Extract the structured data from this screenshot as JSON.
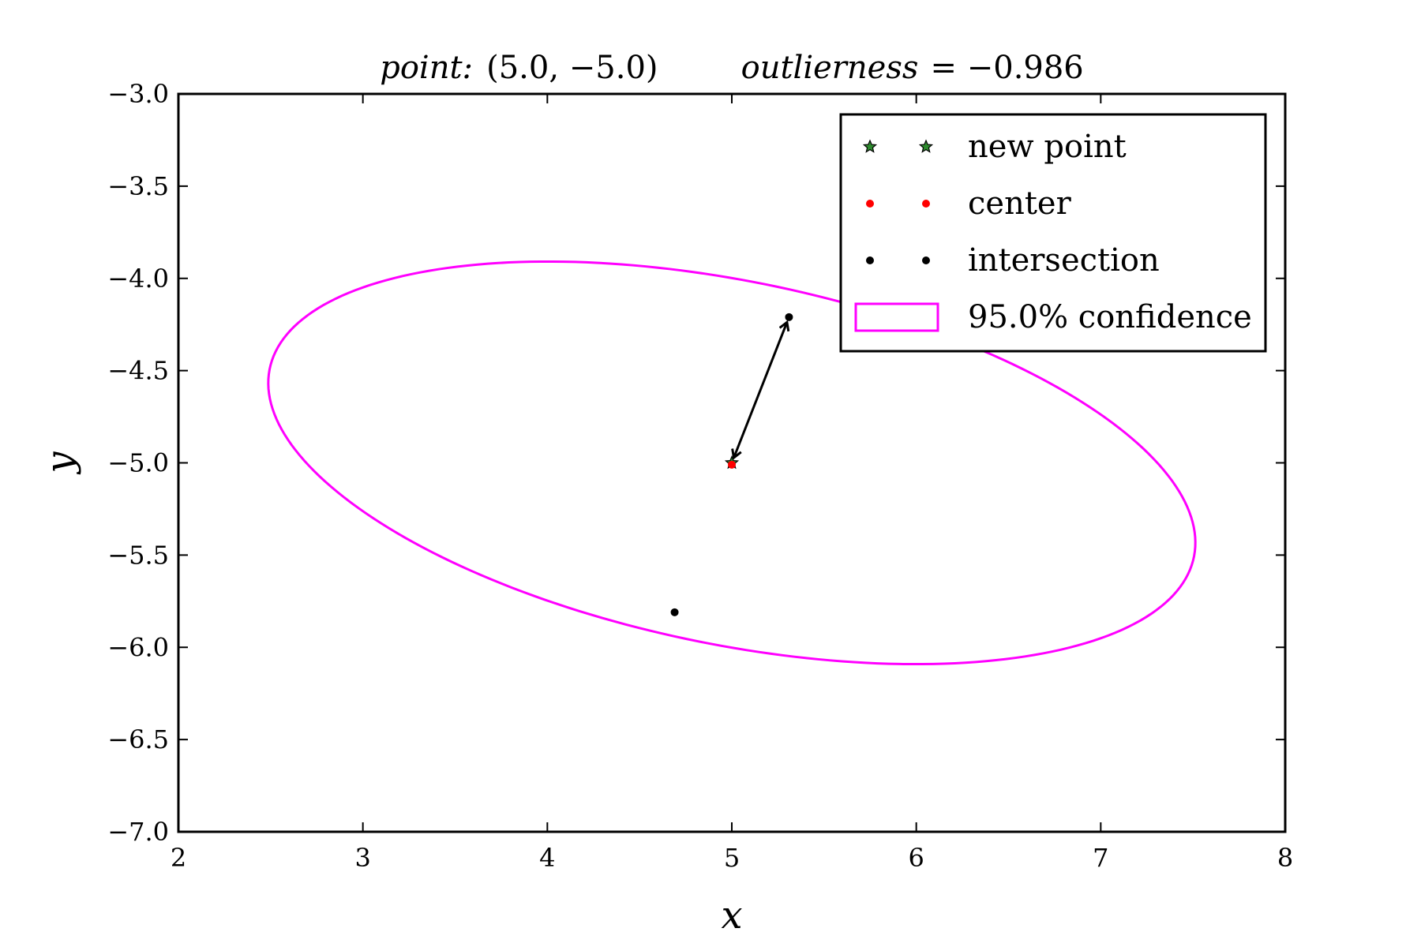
{
  "chart_data": {
    "type": "scatter",
    "title": {
      "point_label": "point:",
      "point_value": "(5.0, −5.0)",
      "outlier_label": "outlierness",
      "outlier_value": "= −0.986"
    },
    "xlabel": "x",
    "ylabel": "y",
    "xlim": [
      2,
      8
    ],
    "ylim": [
      -7.0,
      -3.0
    ],
    "xticks": [
      2,
      3,
      4,
      5,
      6,
      7,
      8
    ],
    "xtick_labels": [
      "2",
      "3",
      "4",
      "5",
      "6",
      "7",
      "8"
    ],
    "yticks": [
      -3.0,
      -3.5,
      -4.0,
      -4.5,
      -5.0,
      -5.5,
      -6.0,
      -6.5,
      -7.0
    ],
    "ytick_labels": [
      "−3.0",
      "−3.5",
      "−4.0",
      "−4.5",
      "−5.0",
      "−5.5",
      "−6.0",
      "−6.5",
      "−7.0"
    ],
    "grid": false,
    "legend_position": "top-right",
    "series": [
      {
        "name": "new point",
        "marker": "star",
        "color": "#2e8b2e",
        "points": [
          [
            5.0,
            -5.0
          ]
        ]
      },
      {
        "name": "center",
        "marker": "dot",
        "color": "#ff0000",
        "points": [
          [
            5.0,
            -5.01
          ]
        ]
      },
      {
        "name": "intersection",
        "marker": "dot",
        "color": "#000000",
        "points": [
          [
            5.31,
            -4.21
          ],
          [
            4.69,
            -5.81
          ]
        ]
      },
      {
        "name": "95.0% confidence",
        "marker": "ellipse",
        "color": "#ff00ff",
        "center": [
          5.0,
          -5.0
        ],
        "semi_axis_x_a": 2.51,
        "semi_axis_y_a": -0.48,
        "semi_axis_x_b": 0.12,
        "semi_axis_y_b": 0.98
      }
    ],
    "annotations": [
      {
        "type": "double-arrow",
        "from": [
          5.31,
          -4.21
        ],
        "to": [
          5.0,
          -5.0
        ],
        "color": "#000000"
      }
    ]
  }
}
